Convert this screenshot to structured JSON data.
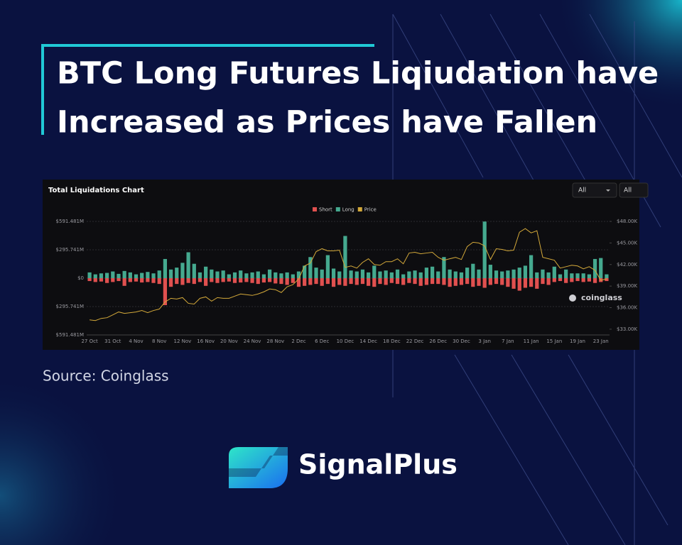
{
  "headline": [
    "BTC Long Futures Liqiudation have",
    "Increased as Prices have Fallen"
  ],
  "source": "Source: Coinglass",
  "brand": "SignalPlus",
  "panel": {
    "dropdowns": [
      "All",
      "All"
    ],
    "watermark": "coinglass"
  },
  "chart_data": {
    "type": "bar",
    "title": "Total Liquidations Chart",
    "categories": [
      "27 Oct",
      null,
      null,
      null,
      "31 Oct",
      null,
      null,
      null,
      "4 Nov",
      null,
      null,
      null,
      "8 Nov",
      null,
      null,
      null,
      "12 Nov",
      null,
      null,
      null,
      "16 Nov",
      null,
      null,
      null,
      "20 Nov",
      null,
      null,
      null,
      "24 Nov",
      null,
      null,
      null,
      "28 Nov",
      null,
      null,
      null,
      "2 Dec",
      null,
      null,
      null,
      "6 Dec",
      null,
      null,
      null,
      "10 Dec",
      null,
      null,
      null,
      "14 Dec",
      null,
      null,
      null,
      "18 Dec",
      null,
      null,
      null,
      "22 Dec",
      null,
      null,
      null,
      "26 Dec",
      null,
      null,
      null,
      "30 Dec",
      null,
      null,
      null,
      "3 Jan",
      null,
      null,
      null,
      "7 Jan",
      null,
      null,
      null,
      "11 Jan",
      null,
      null,
      null,
      "15 Jan",
      null,
      null,
      null,
      "19 Jan",
      null,
      null,
      null,
      "23 Jan",
      null
    ],
    "series": [
      {
        "name": "Short",
        "color": "#e0504f",
        "type": "bar",
        "values": [
          -30,
          -40,
          -35,
          -50,
          -40,
          -30,
          -80,
          -40,
          -35,
          -45,
          -40,
          -50,
          -60,
          -281,
          -90,
          -60,
          -70,
          -50,
          -60,
          -40,
          -80,
          -40,
          -50,
          -40,
          -35,
          -50,
          -45,
          -40,
          -50,
          -60,
          -45,
          -40,
          -55,
          -60,
          -70,
          -50,
          -90,
          -80,
          -70,
          -60,
          -80,
          -60,
          -90,
          -70,
          -80,
          -60,
          -70,
          -60,
          -80,
          -90,
          -60,
          -70,
          -50,
          -60,
          -70,
          -50,
          -60,
          -80,
          -70,
          -60,
          -60,
          -70,
          -90,
          -80,
          -70,
          -60,
          -90,
          -80,
          -100,
          -70,
          -60,
          -70,
          -90,
          -110,
          -130,
          -100,
          -90,
          -110,
          -60,
          -70,
          -40,
          -30,
          -50,
          -40,
          -30,
          -40,
          -35,
          -50,
          -40,
          -30
        ]
      },
      {
        "name": "Long",
        "color": "#45a98f",
        "type": "bar",
        "values": [
          60,
          40,
          50,
          55,
          70,
          45,
          75,
          60,
          40,
          55,
          65,
          50,
          80,
          200,
          90,
          110,
          160,
          270,
          150,
          60,
          120,
          90,
          70,
          80,
          40,
          60,
          80,
          50,
          60,
          70,
          40,
          90,
          60,
          50,
          60,
          40,
          70,
          130,
          220,
          110,
          90,
          240,
          100,
          70,
          440,
          80,
          70,
          90,
          60,
          130,
          70,
          80,
          60,
          90,
          40,
          70,
          80,
          60,
          110,
          120,
          70,
          220,
          90,
          70,
          60,
          110,
          150,
          90,
          590,
          140,
          80,
          70,
          80,
          90,
          110,
          130,
          240,
          60,
          90,
          60,
          120,
          40,
          90,
          50,
          50,
          50,
          40,
          200,
          210,
          40
        ]
      },
      {
        "name": "Price",
        "color": "#d4a93a",
        "type": "line",
        "axis": "y2",
        "values": [
          34.3,
          34.2,
          34.5,
          34.6,
          35.0,
          35.4,
          35.2,
          35.3,
          35.4,
          35.6,
          35.3,
          35.6,
          35.8,
          36.8,
          37.3,
          37.2,
          37.4,
          36.6,
          36.5,
          37.3,
          37.5,
          36.9,
          37.4,
          37.3,
          37.3,
          37.6,
          37.9,
          37.8,
          37.7,
          37.9,
          38.2,
          38.6,
          38.5,
          38.1,
          38.9,
          39.2,
          40.0,
          41.8,
          42.2,
          43.8,
          44.2,
          43.9,
          43.9,
          44.0,
          41.6,
          41.8,
          41.5,
          42.3,
          42.8,
          42.0,
          41.9,
          42.4,
          42.4,
          42.8,
          42.1,
          43.6,
          43.7,
          43.5,
          43.6,
          43.7,
          43.0,
          42.6,
          42.8,
          43.0,
          42.7,
          44.5,
          45.1,
          45.0,
          44.6,
          42.7,
          44.2,
          44.1,
          43.9,
          44.0,
          46.5,
          47.0,
          46.4,
          46.7,
          43.0,
          42.8,
          42.6,
          41.5,
          41.7,
          41.9,
          41.8,
          41.4,
          41.7,
          41.2,
          39.8,
          40.0
        ]
      }
    ],
    "ylim": [
      -591.481,
      591.481
    ],
    "yticks": [
      {
        "value": 591.481,
        "label": "$591.481M"
      },
      {
        "value": 295.741,
        "label": "$295.741M"
      },
      {
        "value": 0,
        "label": "$0"
      },
      {
        "value": -295.741,
        "label": "$295.741M"
      },
      {
        "value": -591.481,
        "label": "$591.481M"
      }
    ],
    "y2lim": [
      32.2,
      48
    ],
    "y2ticks": [
      {
        "value": 48,
        "label": "$48.00K"
      },
      {
        "value": 45,
        "label": "$45.00K"
      },
      {
        "value": 42,
        "label": "$42.00K"
      },
      {
        "value": 39,
        "label": "$39.00K"
      },
      {
        "value": 36,
        "label": "$36.00K"
      },
      {
        "value": 33,
        "label": "$33.00K"
      }
    ],
    "grid": true,
    "legend": "top"
  }
}
